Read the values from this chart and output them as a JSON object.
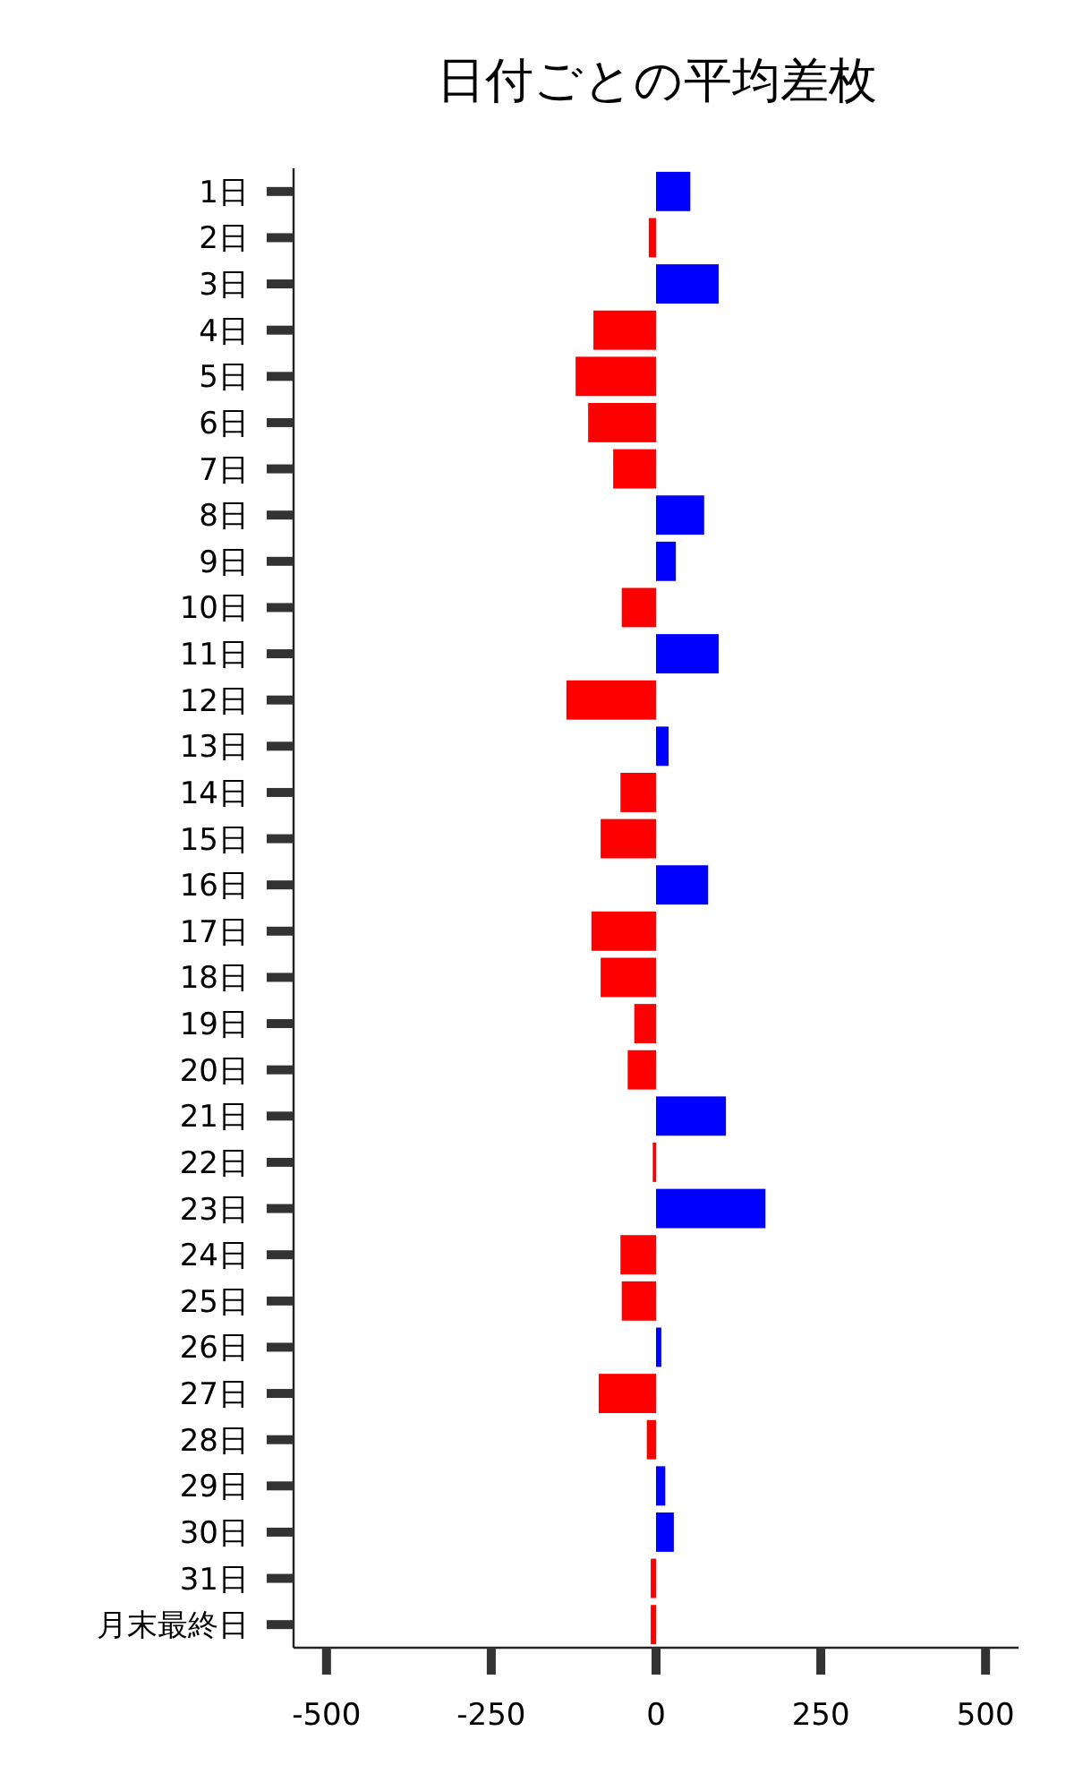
{
  "chart_data": {
    "type": "bar",
    "orientation": "horizontal",
    "title": "日付ごとの平均差枚",
    "categories": [
      "1日",
      "2日",
      "3日",
      "4日",
      "5日",
      "6日",
      "7日",
      "8日",
      "9日",
      "10日",
      "11日",
      "12日",
      "13日",
      "14日",
      "15日",
      "16日",
      "17日",
      "18日",
      "19日",
      "20日",
      "21日",
      "22日",
      "23日",
      "24日",
      "25日",
      "26日",
      "27日",
      "28日",
      "29日",
      "30日",
      "31日",
      "月末最終日"
    ],
    "values": [
      52,
      -11,
      95,
      -95,
      -122,
      -103,
      -65,
      73,
      30,
      -52,
      95,
      -136,
      19,
      -54,
      -84,
      79,
      -98,
      -84,
      -33,
      -43,
      106,
      -5,
      166,
      -54,
      -52,
      8,
      -87,
      -14,
      14,
      27,
      -8,
      -8
    ],
    "colors": [
      "#0000ff",
      "#ff0000",
      "#0000ff",
      "#ff0000",
      "#ff0000",
      "#ff0000",
      "#ff0000",
      "#0000ff",
      "#0000ff",
      "#ff0000",
      "#0000ff",
      "#ff0000",
      "#0000ff",
      "#ff0000",
      "#ff0000",
      "#0000ff",
      "#ff0000",
      "#ff0000",
      "#ff0000",
      "#ff0000",
      "#0000ff",
      "#ff0000",
      "#0000ff",
      "#ff0000",
      "#ff0000",
      "#0000ff",
      "#ff0000",
      "#ff0000",
      "#0000ff",
      "#0000ff",
      "#ff0000",
      "#ff0000"
    ],
    "xlim": [
      -550,
      550
    ],
    "xticks": [
      -500,
      -250,
      0,
      250,
      500
    ],
    "grid": false
  }
}
